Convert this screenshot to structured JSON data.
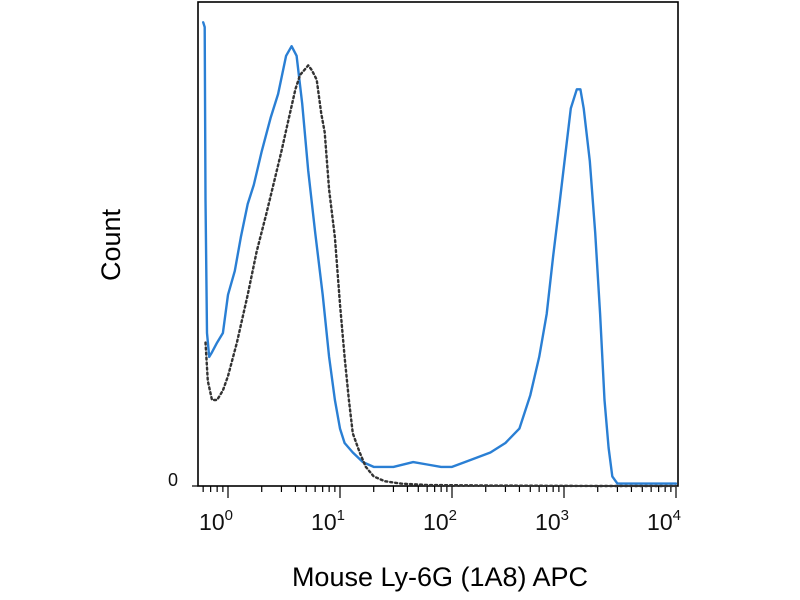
{
  "chart_data": {
    "type": "line",
    "xlabel": "Mouse Ly-6G (1A8) APC",
    "ylabel": "Count",
    "x_scale": "log",
    "xlim": [
      0.6,
      10000
    ],
    "ylim": [
      0,
      100
    ],
    "y_tick_labels": [
      "0"
    ],
    "x_ticks": [
      {
        "value": 1,
        "base": "10",
        "exp": "0"
      },
      {
        "value": 10,
        "base": "10",
        "exp": "1"
      },
      {
        "value": 100,
        "base": "10",
        "exp": "2"
      },
      {
        "value": 1000,
        "base": "10",
        "exp": "3"
      },
      {
        "value": 10000,
        "base": "10",
        "exp": "4"
      }
    ],
    "grid": false,
    "legend": "none",
    "series": [
      {
        "style": "solid",
        "color": "#2a7fd4",
        "points": [
          [
            0.6,
            97
          ],
          [
            0.62,
            96
          ],
          [
            0.63,
            60
          ],
          [
            0.65,
            32
          ],
          [
            0.68,
            27
          ],
          [
            0.72,
            28
          ],
          [
            0.8,
            30
          ],
          [
            0.9,
            32
          ],
          [
            1.0,
            40
          ],
          [
            1.15,
            45
          ],
          [
            1.3,
            52
          ],
          [
            1.5,
            59
          ],
          [
            1.7,
            63
          ],
          [
            2.0,
            70
          ],
          [
            2.4,
            77
          ],
          [
            2.8,
            82
          ],
          [
            3.3,
            90
          ],
          [
            3.7,
            92
          ],
          [
            4.1,
            90
          ],
          [
            4.6,
            80
          ],
          [
            5.2,
            66
          ],
          [
            6.0,
            53
          ],
          [
            7.0,
            40
          ],
          [
            8.0,
            27
          ],
          [
            9.0,
            18
          ],
          [
            10.0,
            12
          ],
          [
            11.0,
            9
          ],
          [
            13.0,
            7
          ],
          [
            16.0,
            5
          ],
          [
            20.0,
            4
          ],
          [
            30.0,
            4
          ],
          [
            45.0,
            5
          ],
          [
            60.0,
            4.5
          ],
          [
            80.0,
            4
          ],
          [
            100.0,
            4
          ],
          [
            130.0,
            5
          ],
          [
            170.0,
            6
          ],
          [
            220.0,
            7
          ],
          [
            300.0,
            9
          ],
          [
            400.0,
            12
          ],
          [
            500.0,
            19
          ],
          [
            600.0,
            27
          ],
          [
            700.0,
            36
          ],
          [
            800.0,
            48
          ],
          [
            900.0,
            58
          ],
          [
            1000.0,
            67
          ],
          [
            1150.0,
            79
          ],
          [
            1300.0,
            83
          ],
          [
            1400.0,
            83
          ],
          [
            1500.0,
            79
          ],
          [
            1700.0,
            68
          ],
          [
            1900.0,
            53
          ],
          [
            2100.0,
            36
          ],
          [
            2300.0,
            18
          ],
          [
            2500.0,
            8
          ],
          [
            2700.0,
            2
          ],
          [
            3000.0,
            0.5
          ],
          [
            4000.0,
            0.5
          ],
          [
            10000.0,
            0.5
          ]
        ]
      },
      {
        "style": "dotted",
        "color": "#333333",
        "points": [
          [
            0.63,
            30
          ],
          [
            0.66,
            22
          ],
          [
            0.72,
            18
          ],
          [
            0.8,
            18
          ],
          [
            0.9,
            20
          ],
          [
            1.0,
            23
          ],
          [
            1.2,
            30
          ],
          [
            1.5,
            40
          ],
          [
            1.8,
            49
          ],
          [
            2.2,
            57
          ],
          [
            2.6,
            64
          ],
          [
            3.0,
            70
          ],
          [
            3.5,
            77
          ],
          [
            4.0,
            83
          ],
          [
            4.4,
            86
          ],
          [
            4.8,
            87
          ],
          [
            5.2,
            88
          ],
          [
            5.6,
            87
          ],
          [
            6.2,
            85
          ],
          [
            6.8,
            78
          ],
          [
            7.3,
            74
          ],
          [
            8.0,
            62
          ],
          [
            9.0,
            52
          ],
          [
            10.0,
            38
          ],
          [
            11.0,
            27
          ],
          [
            12.0,
            18
          ],
          [
            13.0,
            11
          ],
          [
            15.0,
            7
          ],
          [
            17.0,
            4
          ],
          [
            20.0,
            2
          ],
          [
            25.0,
            1
          ],
          [
            35.0,
            0.5
          ],
          [
            60.0,
            0.2
          ],
          [
            200.0,
            0.1
          ],
          [
            2000.0,
            0
          ],
          [
            10000.0,
            0
          ]
        ]
      }
    ]
  }
}
